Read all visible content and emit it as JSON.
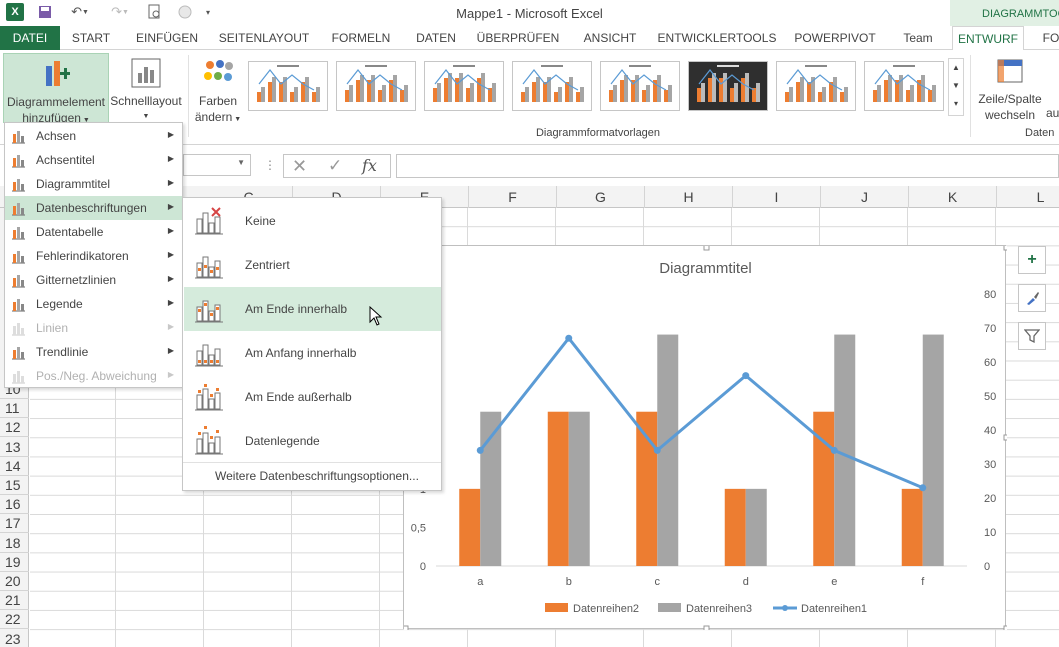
{
  "window": {
    "title": "Mappe1 - Microsoft Excel",
    "context_header": "DIAGRAMMTOOLS"
  },
  "tabs": [
    "DATEI",
    "START",
    "EINFÜGEN",
    "SEITENLAYOUT",
    "FORMELN",
    "DATEN",
    "ÜBERPRÜFEN",
    "ANSICHT",
    "ENTWICKLERTOOLS",
    "POWERPIVOT",
    "Team",
    "ENTWURF",
    "FO"
  ],
  "ribbon": {
    "add_element": [
      "Diagrammelement",
      "hinzufügen"
    ],
    "quick_layout": "Schnelllayout",
    "colors": [
      "Farben",
      "ändern"
    ],
    "styles_group": "Diagrammformatvorlagen",
    "switch": [
      "Zeile/Spalte",
      "wechseln"
    ],
    "data_group": "Daten",
    "partial": "au"
  },
  "formula": {
    "fx": "fx",
    "value": ""
  },
  "columns": [
    "E",
    "F",
    "G",
    "H",
    "I",
    "J",
    "K",
    "L"
  ],
  "columns_hidden": [
    "C",
    "D"
  ],
  "rows": [
    "10",
    "11",
    "12",
    "13",
    "14",
    "15",
    "16",
    "17",
    "18",
    "19",
    "20",
    "21",
    "22",
    "23"
  ],
  "menu": {
    "items": [
      {
        "label": "Achsen",
        "u": "s",
        "arrow": true
      },
      {
        "label": "Achsentitel",
        "u": "A",
        "arrow": true
      },
      {
        "label": "Diagrammtitel",
        "u": "m",
        "arrow": true
      },
      {
        "label": "Datenbeschriftungen",
        "u": "b",
        "arrow": true,
        "highlight": true
      },
      {
        "label": "Datentabelle",
        "u": "t",
        "arrow": true
      },
      {
        "label": "Fehlerindikatoren",
        "u": "h",
        "arrow": true
      },
      {
        "label": "Gitternetzlinien",
        "u": "G",
        "arrow": true
      },
      {
        "label": "Legende",
        "u": "g",
        "arrow": true
      },
      {
        "label": "Linien",
        "u": "i",
        "arrow": true,
        "disabled": true
      },
      {
        "label": "Trendlinie",
        "u": "T",
        "arrow": true
      },
      {
        "label": "Pos./Neg. Abweichung",
        "u": "P",
        "arrow": true,
        "disabled": true
      }
    ],
    "sub": [
      {
        "label": "Keine",
        "icon": "none-icon"
      },
      {
        "label": "Zentriert",
        "icon": "center-labels-icon"
      },
      {
        "label": "Am Ende innerhalb",
        "icon": "inside-end-icon",
        "highlight": true
      },
      {
        "label": "Am Anfang innerhalb",
        "icon": "inside-base-icon"
      },
      {
        "label": "Am Ende außerhalb",
        "icon": "outside-end-icon"
      },
      {
        "label": "Datenlegende",
        "icon": "data-callout-icon"
      }
    ],
    "more": "Weitere Datenbeschriftungsoptionen..."
  },
  "chart_data": {
    "type": "bar",
    "title": "Diagrammtitel",
    "categories": [
      "a",
      "b",
      "c",
      "d",
      "e",
      "f"
    ],
    "series": [
      {
        "name": "Datenreihen2",
        "kind": "bar",
        "axis": "left",
        "color": "#ed7d31",
        "values": [
          1,
          2,
          2,
          1,
          2,
          1
        ]
      },
      {
        "name": "Datenreihen3",
        "kind": "bar",
        "axis": "left",
        "color": "#a5a5a5",
        "values": [
          2,
          2,
          3,
          1,
          3,
          3
        ]
      },
      {
        "name": "Datenreihen1",
        "kind": "line",
        "axis": "right",
        "color": "#5b9bd5",
        "values": [
          34,
          67,
          34,
          56,
          34,
          23
        ]
      }
    ],
    "left_ticks": [
      "0",
      "0,5",
      "1"
    ],
    "left_ylim": [
      0,
      3.5
    ],
    "right_ticks": [
      "0",
      "10",
      "20",
      "30",
      "40",
      "50",
      "60",
      "70",
      "80"
    ],
    "right_ylim": [
      0,
      80
    ],
    "legend": "bottom",
    "grid": false
  }
}
